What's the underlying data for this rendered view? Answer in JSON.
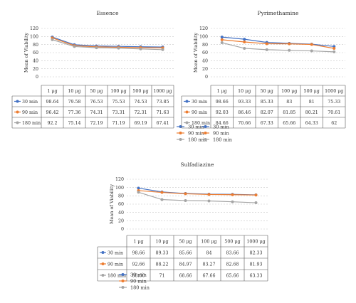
{
  "chart_data": [
    {
      "type": "line",
      "title": "Essence",
      "ylabel": "Mean of Viability",
      "xlabel": "",
      "ylim": [
        0,
        120
      ],
      "yticks": [
        0,
        20,
        40,
        60,
        80,
        100,
        120
      ],
      "grid": true,
      "categories": [
        "1 μg",
        "10 μg",
        "50 μg",
        "100 μg",
        "500 μg",
        "1000 μg"
      ],
      "series": [
        {
          "name": "30 min",
          "color": "#4472c4",
          "values": [
            98.64,
            79.58,
            76.53,
            75.53,
            74.53,
            73.85
          ],
          "labels": [
            "98.64",
            "79.58",
            "76.53",
            "75.53",
            "74.53",
            "73.85"
          ]
        },
        {
          "name": "90 min",
          "color": "#ed7d31",
          "values": [
            96.42,
            77.36,
            74.31,
            73.31,
            72.31,
            71.63
          ],
          "labels": [
            "96.42",
            "77.36",
            "74.31",
            "73.31",
            "72.31",
            "71.63"
          ]
        },
        {
          "name": "180 min",
          "color": "#a5a5a5",
          "values": [
            92.2,
            75.14,
            72.19,
            71.19,
            69.19,
            67.41
          ],
          "labels": [
            "92.2",
            "75.14",
            "72.19",
            "71.19",
            "69.19",
            "67.41"
          ]
        }
      ]
    },
    {
      "type": "line",
      "title": "Pyrimethamine",
      "ylabel": "Mean of Viability",
      "xlabel": "",
      "ylim": [
        0,
        120
      ],
      "yticks": [
        0,
        20,
        40,
        60,
        80,
        100,
        120
      ],
      "grid": true,
      "categories": [
        "1 μg",
        "10 μg",
        "50 μg",
        "100 μg",
        "500 μg",
        "1000 μg"
      ],
      "series": [
        {
          "name": "30 min",
          "color": "#4472c4",
          "values": [
            98.66,
            93.33,
            85.33,
            83,
            81,
            75.33
          ],
          "labels": [
            "98.66",
            "93.33",
            "85.33",
            "83",
            "81",
            "75.33"
          ]
        },
        {
          "name": "90 min",
          "color": "#ed7d31",
          "values": [
            92.03,
            86.46,
            82.07,
            81.85,
            80.21,
            70.61
          ],
          "labels": [
            "92.03",
            "86.46",
            "82.07",
            "81.85",
            "80.21",
            "70.61"
          ]
        },
        {
          "name": "180 min",
          "color": "#a5a5a5",
          "values": [
            84.66,
            70.66,
            67.33,
            65.66,
            64.33,
            62
          ],
          "labels": [
            "84.66",
            "70.66",
            "67.33",
            "65.66",
            "64.33",
            "62"
          ]
        }
      ]
    },
    {
      "type": "line",
      "title": "Sulfadiazine",
      "ylabel": "Mean of Viability",
      "xlabel": "",
      "ylim": [
        0,
        120
      ],
      "yticks": [
        0,
        20,
        40,
        60,
        80,
        100,
        120
      ],
      "grid": true,
      "categories": [
        "1 μg",
        "10 μg",
        "50 μg",
        "100 μg",
        "500 μg",
        "1000 μg"
      ],
      "series": [
        {
          "name": "30 min",
          "color": "#4472c4",
          "values": [
            98.66,
            89.33,
            85.66,
            84,
            83.66,
            82.33
          ],
          "labels": [
            "98.66",
            "89.33",
            "85.66",
            "84",
            "83.66",
            "82.33"
          ]
        },
        {
          "name": "90 min",
          "color": "#ed7d31",
          "values": [
            92.66,
            88.22,
            84.97,
            83.27,
            82.68,
            81.93
          ],
          "labels": [
            "92.66",
            "88.22",
            "84.97",
            "83.27",
            "82.68",
            "81.93"
          ]
        },
        {
          "name": "180 min",
          "color": "#a5a5a5",
          "values": [
            88.66,
            71,
            68.66,
            67.66,
            65.66,
            63.33
          ],
          "labels": [
            "88.66",
            "71",
            "68.66",
            "67.66",
            "65.66",
            "63.33"
          ]
        }
      ]
    }
  ]
}
